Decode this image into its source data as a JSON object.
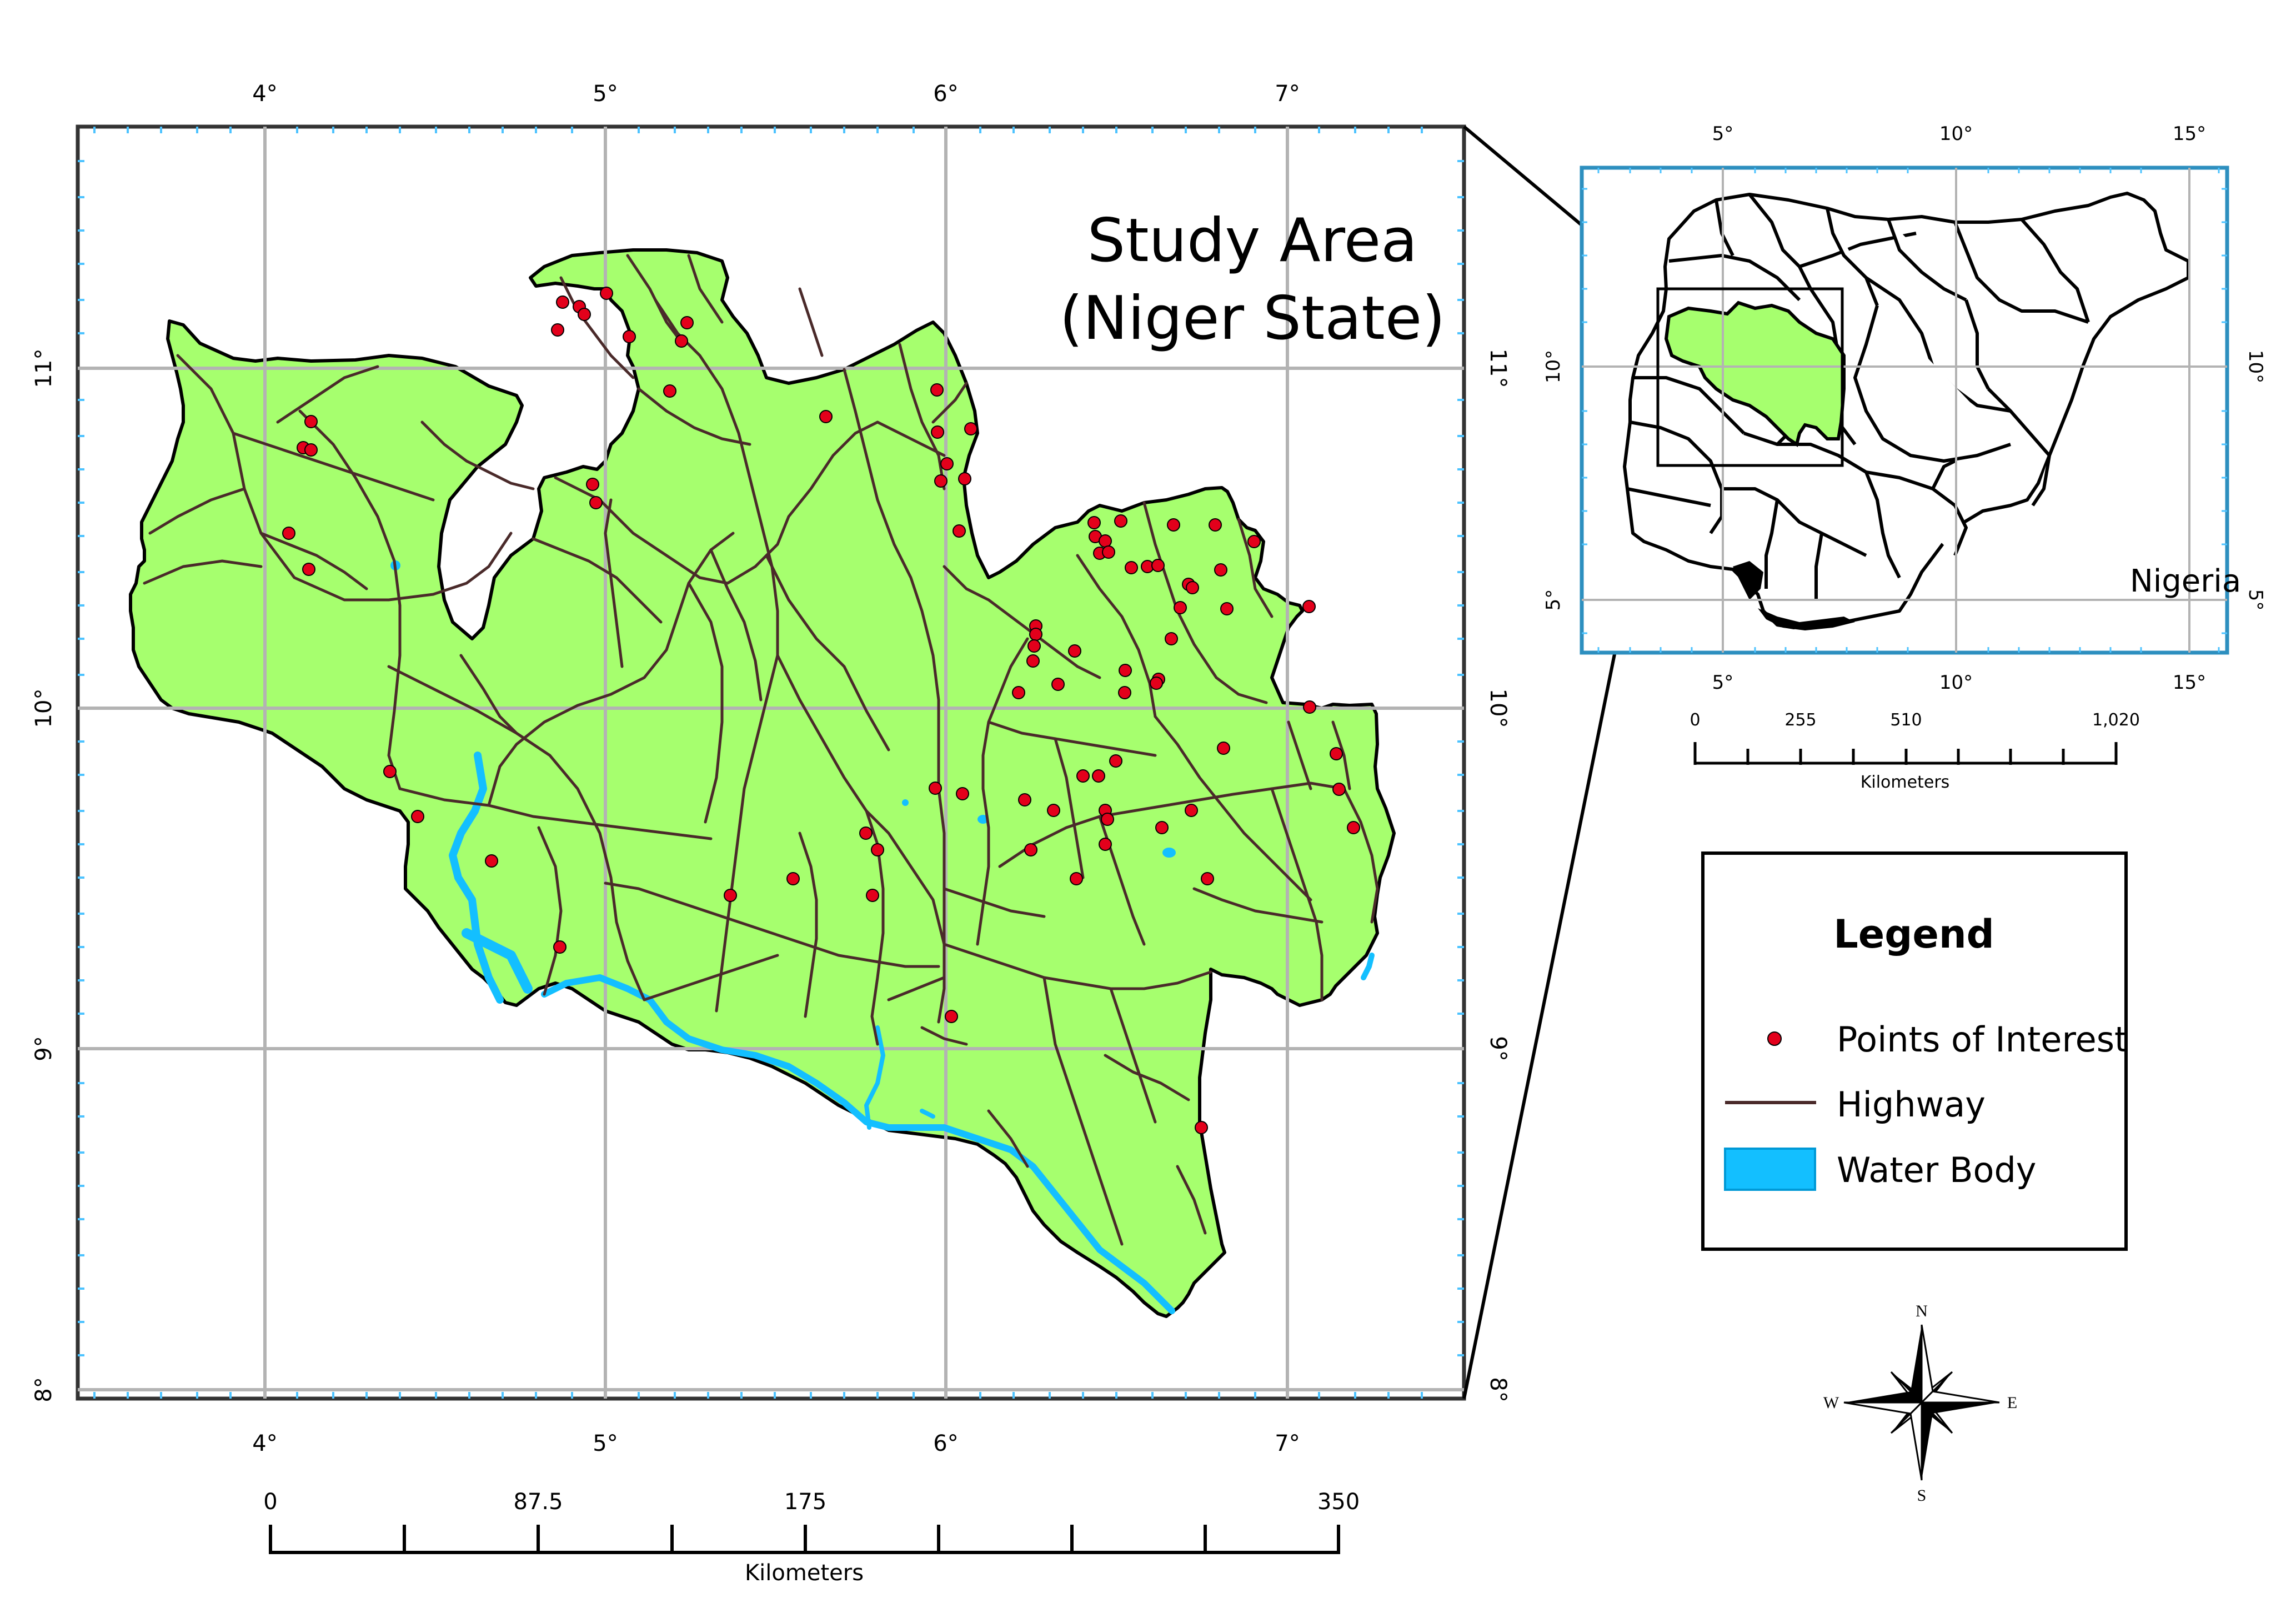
{
  "main_map": {
    "title_line1": "Study Area",
    "title_line2": "(Niger State)",
    "lon_labels": [
      "4°",
      "5°",
      "6°",
      "7°"
    ],
    "lat_labels": [
      "11°",
      "10°",
      "9°",
      "8°"
    ],
    "scale": {
      "labels": [
        "0",
        "87.5",
        "175",
        "350"
      ],
      "unit": "Kilometers"
    },
    "colors": {
      "land": "#a6ff6e",
      "boundary": "#000000",
      "highway": "#4a2a2a",
      "water": "#13bfff",
      "poi": "#e3001b",
      "grid": "#b3b3b3",
      "tick": "#4dc3ff"
    }
  },
  "inset_map": {
    "country_label": "Nigeria",
    "lon_labels": [
      "5°",
      "10°",
      "15°"
    ],
    "lat_labels": [
      "10°",
      "5°"
    ],
    "scale": {
      "labels": [
        "0",
        "255",
        "510",
        "1,020"
      ],
      "unit": "Kilometers"
    },
    "frame_color": "#2d8fbf"
  },
  "legend": {
    "title": "Legend",
    "items": [
      {
        "label": "Points of Interest",
        "symbol": "point"
      },
      {
        "label": "Highway",
        "symbol": "line"
      },
      {
        "label": "Water Body",
        "symbol": "polygon"
      }
    ]
  },
  "north_arrow": {
    "n": "N",
    "s": "S",
    "e": "E",
    "w": "W",
    "icon": "compass-rose-icon"
  }
}
